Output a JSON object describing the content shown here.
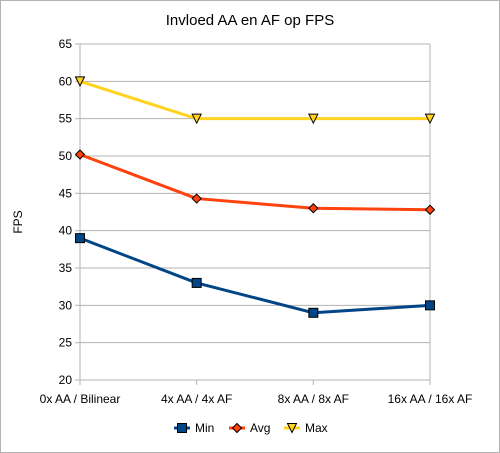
{
  "chart_data": {
    "type": "line",
    "title": "Invloed AA en AF op FPS",
    "xlabel": "",
    "ylabel": "FPS",
    "categories": [
      "0x AA / Bilinear",
      "4x AA / 4x AF",
      "8x AA / 8x AF",
      "16x AA / 16x AF"
    ],
    "ylim": [
      20,
      65
    ],
    "yticks": [
      20,
      25,
      30,
      35,
      40,
      45,
      50,
      55,
      60,
      65
    ],
    "grid": "horizontal",
    "legend": "bottom",
    "series": [
      {
        "name": "Min",
        "values": [
          39,
          33,
          29,
          30
        ],
        "color": "#004586",
        "marker": "square"
      },
      {
        "name": "Avg",
        "values": [
          50.2,
          44.3,
          43,
          42.8
        ],
        "color": "#ff420e",
        "marker": "diamond"
      },
      {
        "name": "Max",
        "values": [
          60,
          55,
          55,
          55
        ],
        "color": "#ffd320",
        "marker": "triangle-down"
      }
    ]
  }
}
